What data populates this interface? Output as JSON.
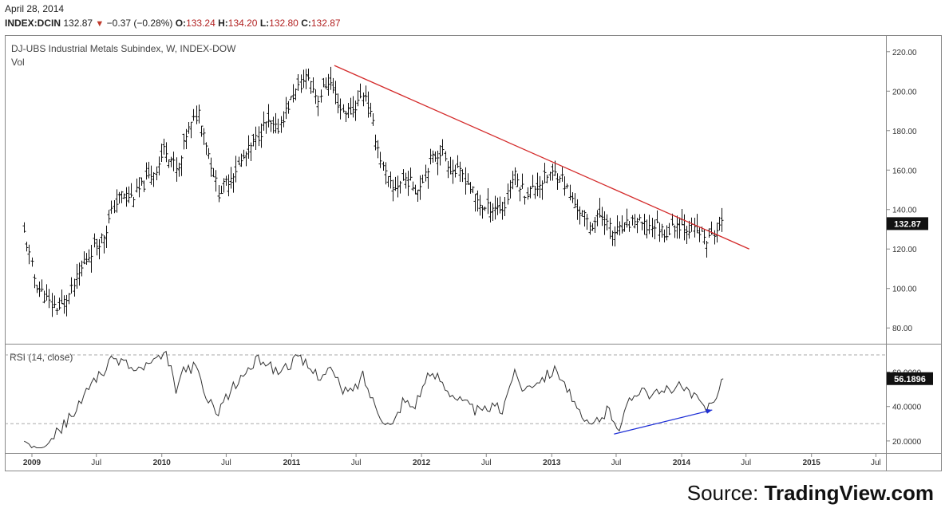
{
  "header": {
    "date": "April 28, 2014",
    "symbol": "INDEX:DCIN",
    "last": "132.87",
    "change": "−0.37 (−0.28%)",
    "o_label": "O:",
    "o": "133.24",
    "h_label": "H:",
    "h": "134.20",
    "l_label": "L:",
    "l": "132.80",
    "c_label": "C:",
    "c": "132.87"
  },
  "source": {
    "prefix": "Source:",
    "brand": "TradingView.com"
  },
  "colors": {
    "trendline": "#d42b2b",
    "divergence": "#1e2fd6",
    "bars": "#111111",
    "rsi_line": "#333333",
    "grid": "#cccccc"
  },
  "chart_data": [
    {
      "type": "ohlc",
      "title": "DJ-UBS Industrial Metals Subindex, W, INDEX-DOW",
      "subtitle": "Vol",
      "x_tick_labels": [
        "2009",
        "Jul",
        "2010",
        "Jul",
        "2011",
        "Jul",
        "2012",
        "Jul",
        "2013",
        "Jul",
        "2014",
        "Jul",
        "2015",
        "Jul"
      ],
      "x_tick_dates": [
        "2009-01",
        "2009-07",
        "2010-01",
        "2010-07",
        "2011-01",
        "2011-07",
        "2012-01",
        "2012-07",
        "2013-01",
        "2013-07",
        "2014-01",
        "2014-07",
        "2015-01",
        "2015-07"
      ],
      "y_tick_labels": [
        "80.00",
        "100.00",
        "120.00",
        "140.00",
        "160.00",
        "180.00",
        "200.00",
        "220.00"
      ],
      "ylim": [
        72,
        228
      ],
      "last_value_label": "132.87",
      "last_value": 132.87,
      "close_path": [
        [
          "2008-12-10",
          128
        ],
        [
          "2009-01-10",
          103
        ],
        [
          "2009-02-20",
          92
        ],
        [
          "2009-03-20",
          90
        ],
        [
          "2009-04-20",
          98
        ],
        [
          "2009-05-20",
          110
        ],
        [
          "2009-06-20",
          120
        ],
        [
          "2009-07-25",
          128
        ],
        [
          "2009-08-15",
          140
        ],
        [
          "2009-09-10",
          148
        ],
        [
          "2009-10-10",
          146
        ],
        [
          "2009-11-20",
          155
        ],
        [
          "2009-12-20",
          162
        ],
        [
          "2010-01-10",
          172
        ],
        [
          "2010-02-15",
          158
        ],
        [
          "2010-03-10",
          178
        ],
        [
          "2010-04-15",
          190
        ],
        [
          "2010-05-15",
          166
        ],
        [
          "2010-06-10",
          148
        ],
        [
          "2010-07-10",
          156
        ],
        [
          "2010-08-15",
          165
        ],
        [
          "2010-09-20",
          175
        ],
        [
          "2010-10-20",
          184
        ],
        [
          "2010-11-20",
          180
        ],
        [
          "2011-01-05",
          198
        ],
        [
          "2011-02-15",
          208
        ],
        [
          "2011-03-15",
          196
        ],
        [
          "2011-04-15",
          206
        ],
        [
          "2011-05-20",
          190
        ],
        [
          "2011-06-20",
          190
        ],
        [
          "2011-07-25",
          200
        ],
        [
          "2011-08-20",
          180
        ],
        [
          "2011-09-15",
          160
        ],
        [
          "2011-10-10",
          150
        ],
        [
          "2011-11-15",
          156
        ],
        [
          "2011-12-20",
          150
        ],
        [
          "2012-01-25",
          165
        ],
        [
          "2012-02-25",
          170
        ],
        [
          "2012-03-25",
          160
        ],
        [
          "2012-04-25",
          158
        ],
        [
          "2012-05-25",
          148
        ],
        [
          "2012-06-25",
          140
        ],
        [
          "2012-07-20",
          142
        ],
        [
          "2012-08-20",
          140
        ],
        [
          "2012-09-15",
          158
        ],
        [
          "2012-10-20",
          148
        ],
        [
          "2012-11-20",
          152
        ],
        [
          "2012-12-25",
          158
        ],
        [
          "2013-01-25",
          158
        ],
        [
          "2013-02-25",
          145
        ],
        [
          "2013-03-25",
          138
        ],
        [
          "2013-04-20",
          132
        ],
        [
          "2013-05-20",
          138
        ],
        [
          "2013-06-20",
          128
        ],
        [
          "2013-07-20",
          130
        ],
        [
          "2013-08-20",
          135
        ],
        [
          "2013-09-20",
          131
        ],
        [
          "2013-10-20",
          132
        ],
        [
          "2013-11-20",
          128
        ],
        [
          "2013-12-20",
          133
        ],
        [
          "2014-01-20",
          131
        ],
        [
          "2014-02-20",
          128
        ],
        [
          "2014-03-15",
          124
        ],
        [
          "2014-04-10",
          130
        ],
        [
          "2014-04-28",
          132.87
        ]
      ],
      "trendline": {
        "start": [
          "2011-05-01",
          213
        ],
        "end": [
          "2014-07-10",
          120
        ]
      }
    },
    {
      "type": "line",
      "title": "RSI (14, close)",
      "y_tick_labels": [
        "20.0000",
        "40.0000",
        "60.0000"
      ],
      "ylim": [
        13,
        76
      ],
      "reference_lines": [
        70,
        30
      ],
      "last_value_label": "56.1896",
      "last_value": 56.1896,
      "x": [
        "2008-12-10",
        "2009-01-20",
        "2009-03-10",
        "2009-04-20",
        "2009-05-20",
        "2009-06-20",
        "2009-07-20",
        "2009-08-20",
        "2009-09-20",
        "2009-10-20",
        "2009-11-20",
        "2009-12-20",
        "2010-01-15",
        "2010-02-10",
        "2010-03-10",
        "2010-04-10",
        "2010-05-10",
        "2010-06-10",
        "2010-07-10",
        "2010-08-10",
        "2010-09-10",
        "2010-10-10",
        "2010-11-20",
        "2010-12-20",
        "2011-01-20",
        "2011-02-20",
        "2011-03-20",
        "2011-04-20",
        "2011-05-20",
        "2011-06-20",
        "2011-07-20",
        "2011-08-20",
        "2011-09-20",
        "2011-10-10",
        "2011-11-10",
        "2011-12-10",
        "2012-01-15",
        "2012-02-15",
        "2012-03-15",
        "2012-04-15",
        "2012-05-15",
        "2012-06-15",
        "2012-07-15",
        "2012-08-15",
        "2012-09-15",
        "2012-10-15",
        "2012-11-15",
        "2012-12-15",
        "2013-01-15",
        "2013-02-15",
        "2013-03-15",
        "2013-04-15",
        "2013-05-10",
        "2013-06-10",
        "2013-07-10",
        "2013-08-10",
        "2013-09-10",
        "2013-10-10",
        "2013-11-10",
        "2013-12-10",
        "2014-01-10",
        "2014-02-10",
        "2014-03-10",
        "2014-04-10",
        "2014-04-28"
      ],
      "values": [
        21,
        18,
        24,
        34,
        42,
        56,
        60,
        68,
        66,
        60,
        64,
        66,
        70,
        50,
        63,
        62,
        42,
        38,
        48,
        56,
        64,
        68,
        60,
        64,
        68,
        62,
        58,
        62,
        50,
        48,
        58,
        42,
        32,
        28,
        44,
        40,
        56,
        58,
        50,
        44,
        40,
        36,
        40,
        38,
        60,
        50,
        55,
        58,
        62,
        50,
        36,
        28,
        32,
        38,
        28,
        44,
        52,
        46,
        48,
        52,
        50,
        44,
        38,
        48,
        56.19
      ],
      "divergence_line": {
        "start": [
          "2013-06-25",
          24
        ],
        "end": [
          "2014-03-28",
          38
        ]
      }
    }
  ]
}
